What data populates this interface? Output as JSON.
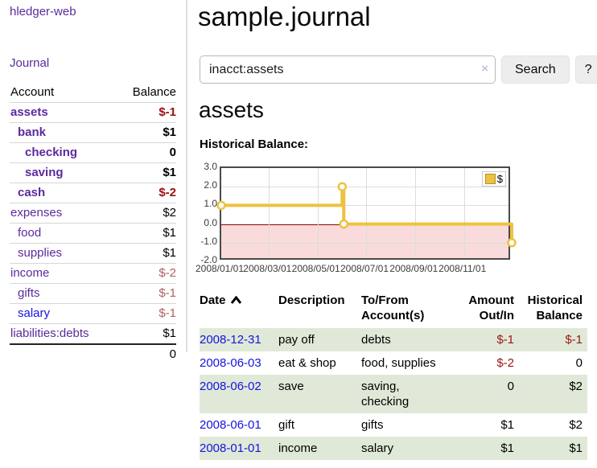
{
  "brand": "hledger-web",
  "nav": {
    "journal_label": "Journal"
  },
  "sidebar": {
    "headers": {
      "account": "Account",
      "balance": "Balance"
    },
    "accounts": [
      {
        "name": "assets",
        "level": 1,
        "bold": true,
        "balance": "$-1",
        "neg": "strong"
      },
      {
        "name": "bank",
        "level": 2,
        "bold": true,
        "balance": "$1",
        "neg": "none"
      },
      {
        "name": "checking",
        "level": 3,
        "bold": true,
        "balance": "0",
        "neg": "none"
      },
      {
        "name": "saving",
        "level": 3,
        "bold": true,
        "balance": "$1",
        "neg": "none"
      },
      {
        "name": "cash",
        "level": 2,
        "bold": true,
        "balance": "$-2",
        "neg": "strong"
      },
      {
        "name": "expenses",
        "level": 1,
        "bold": false,
        "balance": "$2",
        "neg": "none"
      },
      {
        "name": "food",
        "level": 2,
        "bold": false,
        "balance": "$1",
        "neg": "none"
      },
      {
        "name": "supplies",
        "level": 2,
        "bold": false,
        "balance": "$1",
        "neg": "none"
      },
      {
        "name": "income",
        "level": 1,
        "bold": false,
        "balance": "$-2",
        "neg": "light"
      },
      {
        "name": "gifts",
        "level": 2,
        "bold": false,
        "balance": "$-1",
        "neg": "light"
      },
      {
        "name": "salary",
        "level": 2,
        "bold": false,
        "balance": "$-1",
        "neg": "light",
        "blue": true
      },
      {
        "name": "liabilities:debts",
        "level": 1,
        "bold": false,
        "balance": "$1",
        "neg": "none"
      }
    ],
    "total": "0"
  },
  "main": {
    "title": "sample.journal",
    "search": {
      "value": "inacct:assets",
      "clear_glyph": "×",
      "button_label": "Search",
      "help_label": "?"
    },
    "account_heading": "assets",
    "chart_title": "Historical Balance:"
  },
  "chart_data": {
    "type": "line",
    "title": "Historical Balance:",
    "step": true,
    "series": [
      {
        "name": "$",
        "color": "#edc240",
        "points": [
          [
            "2008/01/01",
            1
          ],
          [
            "2008/06/01",
            2
          ],
          [
            "2008/06/03",
            0
          ],
          [
            "2008/12/31",
            -1
          ]
        ]
      }
    ],
    "ylim": [
      -2,
      3
    ],
    "yticks": [
      3.0,
      2.0,
      1.0,
      0.0,
      -1.0,
      -2.0
    ],
    "xticks": [
      "2008/01/01",
      "2008/03/01",
      "2008/05/01",
      "2008/07/01",
      "2008/09/01",
      "2008/11/01"
    ],
    "x_range": [
      "2008/01/01",
      "2008/12/31"
    ],
    "grid": true,
    "legend": "$",
    "legend_position": "top-right",
    "negative_region_color": "#f9dbdb",
    "zero_line_color": "#9a0000"
  },
  "register": {
    "headers": [
      "Date",
      "Description",
      "To/From Account(s)",
      "Amount Out/In",
      "Historical Balance"
    ],
    "sort": "ascending",
    "rows": [
      {
        "date": "2008-12-31",
        "description": "pay off",
        "accounts": "debts",
        "amount": "$-1",
        "amount_neg": true,
        "balance": "$-1",
        "balance_neg": true
      },
      {
        "date": "2008-06-03",
        "description": "eat & shop",
        "accounts": "food, supplies",
        "amount": "$-2",
        "amount_neg": true,
        "balance": "0",
        "balance_neg": false
      },
      {
        "date": "2008-06-02",
        "description": "save",
        "accounts": "saving, checking",
        "amount": "0",
        "amount_neg": false,
        "balance": "$2",
        "balance_neg": false
      },
      {
        "date": "2008-06-01",
        "description": "gift",
        "accounts": "gifts",
        "amount": "$1",
        "amount_neg": false,
        "balance": "$2",
        "balance_neg": false
      },
      {
        "date": "2008-01-01",
        "description": "income",
        "accounts": "salary",
        "amount": "$1",
        "amount_neg": false,
        "balance": "$1",
        "balance_neg": false
      }
    ]
  },
  "colors": {
    "link_purple": "#5b2a9d",
    "link_blue": "#1414e0",
    "negative_strong": "#9c0f0f",
    "negative_light": "#b25f63",
    "row_stripe_green": "#e0e9d8",
    "series_gold": "#edc240",
    "negative_region": "#f9dbdb",
    "zero_line": "#9a0000"
  }
}
